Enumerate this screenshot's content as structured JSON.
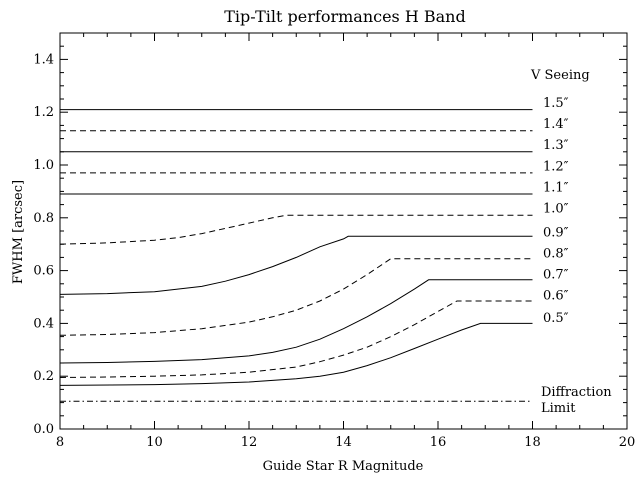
{
  "chart_data": {
    "type": "line",
    "title": "Tip-Tilt performances H Band",
    "xlabel": "Guide Star R Magnitude",
    "ylabel": "FWHM [arcsec]",
    "xlim": [
      8,
      20
    ],
    "ylim": [
      0,
      1.5
    ],
    "xticks": [
      8,
      10,
      12,
      14,
      16,
      18,
      20
    ],
    "yticks": [
      0.0,
      0.2,
      0.4,
      0.6,
      0.8,
      1.0,
      1.2,
      1.4
    ],
    "xtick_labels": [
      "8",
      "10",
      "12",
      "14",
      "16",
      "18",
      "20"
    ],
    "ytick_labels": [
      "0.0",
      "0.2",
      "0.4",
      "0.6",
      "0.8",
      "1.0",
      "1.2",
      "1.4"
    ],
    "grid": false,
    "legend_header": "V Seeing",
    "series": [
      {
        "name": "1.5″",
        "style": "solid",
        "x": [
          8,
          18
        ],
        "y": [
          1.21,
          1.21
        ]
      },
      {
        "name": "1.4″",
        "style": "dashed",
        "x": [
          8,
          18
        ],
        "y": [
          1.13,
          1.13
        ]
      },
      {
        "name": "1.3″",
        "style": "solid",
        "x": [
          8,
          18
        ],
        "y": [
          1.05,
          1.05
        ]
      },
      {
        "name": "1.2″",
        "style": "dashed",
        "x": [
          8,
          18
        ],
        "y": [
          0.97,
          0.97
        ]
      },
      {
        "name": "1.1″",
        "style": "solid",
        "x": [
          8,
          18
        ],
        "y": [
          0.89,
          0.89
        ]
      },
      {
        "name": "1.0″",
        "style": "dashed",
        "x": [
          8,
          9,
          10,
          10.5,
          11,
          11.5,
          12,
          12.5,
          12.8,
          18
        ],
        "y": [
          0.7,
          0.705,
          0.715,
          0.725,
          0.74,
          0.76,
          0.78,
          0.8,
          0.81,
          0.81
        ]
      },
      {
        "name": "0.9″",
        "style": "solid",
        "x": [
          8,
          9,
          10,
          11,
          11.5,
          12,
          12.5,
          13,
          13.5,
          14,
          14.1,
          18
        ],
        "y": [
          0.51,
          0.513,
          0.52,
          0.54,
          0.56,
          0.585,
          0.615,
          0.65,
          0.69,
          0.72,
          0.73,
          0.73
        ]
      },
      {
        "name": "0.8″",
        "style": "dashed",
        "x": [
          8,
          9,
          10,
          11,
          12,
          12.5,
          13,
          13.5,
          14,
          14.5,
          15,
          18
        ],
        "y": [
          0.355,
          0.358,
          0.365,
          0.38,
          0.405,
          0.425,
          0.45,
          0.485,
          0.53,
          0.585,
          0.645,
          0.645
        ]
      },
      {
        "name": "0.7″",
        "style": "solid",
        "x": [
          8,
          9,
          10,
          11,
          12,
          12.5,
          13,
          13.5,
          14,
          14.5,
          15,
          15.5,
          15.8,
          18
        ],
        "y": [
          0.25,
          0.252,
          0.256,
          0.263,
          0.277,
          0.29,
          0.31,
          0.34,
          0.38,
          0.425,
          0.475,
          0.53,
          0.565,
          0.565
        ]
      },
      {
        "name": "0.6″",
        "style": "dashed",
        "x": [
          8,
          9,
          10,
          11,
          12,
          13,
          13.5,
          14,
          14.5,
          15,
          15.5,
          16,
          16.4,
          18
        ],
        "y": [
          0.195,
          0.197,
          0.2,
          0.205,
          0.215,
          0.235,
          0.255,
          0.28,
          0.31,
          0.35,
          0.395,
          0.445,
          0.485,
          0.485
        ]
      },
      {
        "name": "0.5″",
        "style": "solid",
        "x": [
          8,
          10,
          11,
          12,
          13,
          13.5,
          14,
          14.5,
          15,
          15.5,
          16,
          16.5,
          16.9,
          18
        ],
        "y": [
          0.165,
          0.168,
          0.172,
          0.178,
          0.19,
          0.2,
          0.215,
          0.24,
          0.27,
          0.305,
          0.34,
          0.375,
          0.4,
          0.4
        ]
      },
      {
        "name": "Diffraction Limit",
        "style": "dashdot",
        "x": [
          8,
          18
        ],
        "y": [
          0.105,
          0.105
        ]
      }
    ],
    "series_labels": [
      "1.5″",
      "1.4″",
      "1.3″",
      "1.2″",
      "1.1″",
      "1.0″",
      "0.9″",
      "0.8″",
      "0.7″",
      "0.6″",
      "0.5″"
    ],
    "diffraction_label": [
      "Diffraction",
      "Limit"
    ]
  }
}
